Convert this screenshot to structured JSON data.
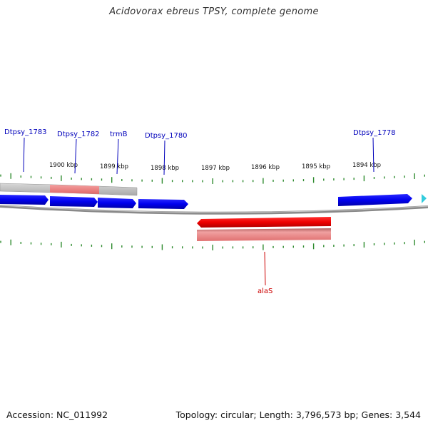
{
  "title": "Acidovorax ebreus TPSY, complete genome",
  "footer": {
    "accession": "Accession: NC_011992",
    "summary": "Topology: circular; Length: 3,796,573 bp; Genes: 3,544"
  },
  "colors": {
    "forward_gene": "#0000ee",
    "reverse_gene": "#ee0000",
    "tick": "#2e8b2e",
    "backbone": "#888888",
    "label_forward": "#0000bb",
    "label_reverse": "#cc0000",
    "partial_arrow": "#33ccdd"
  },
  "scale_labels": [
    "1900 kbp",
    "1899 kbp",
    "1898 kbp",
    "1897 kbp",
    "1896 kbp",
    "1895 kbp",
    "1894 kbp"
  ],
  "gene_labels": {
    "forward": [
      "Dtpsy_1783",
      "Dtpsy_1782",
      "trmB",
      "Dtpsy_1780",
      "Dtpsy_1778"
    ],
    "reverse": [
      "alaS"
    ]
  }
}
